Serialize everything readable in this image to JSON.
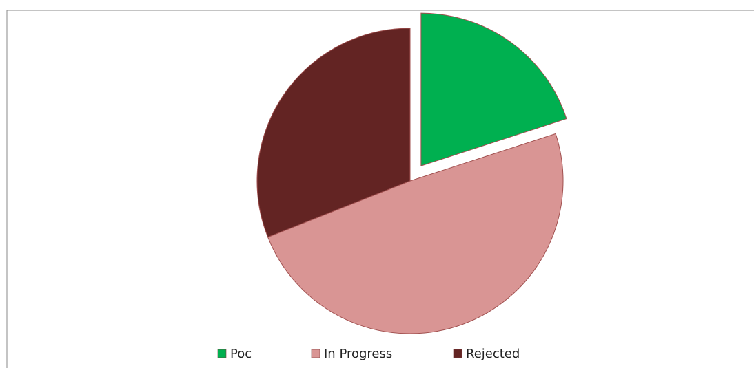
{
  "chart_data": {
    "type": "pie",
    "categories": [
      "Poc",
      "In Progress",
      "Rejected"
    ],
    "values": [
      20,
      49,
      31
    ],
    "colors": [
      "#00b050",
      "#d99594",
      "#632423"
    ],
    "exploded": [
      true,
      false,
      false
    ],
    "legend": "bottom"
  }
}
